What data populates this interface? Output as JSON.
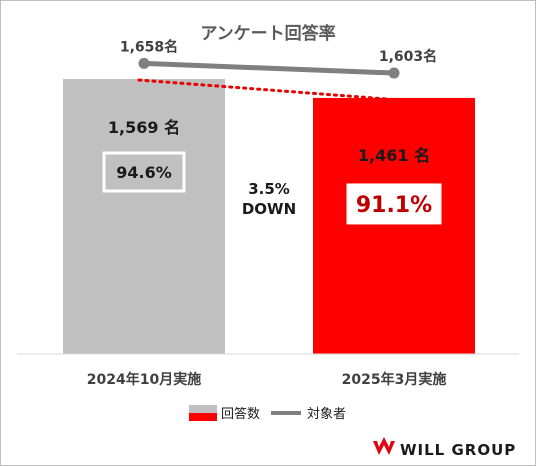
{
  "chart_data": {
    "type": "bar",
    "title": "アンケート回答率",
    "categories": [
      "2024年10月実施",
      "2025年3月実施"
    ],
    "series": [
      {
        "name": "回答数",
        "type": "bar",
        "values": [
          1569,
          1461
        ],
        "value_labels": [
          "1,569 名",
          "1,461 名"
        ],
        "colors": [
          "#c0c0c0",
          "#ff0000"
        ]
      },
      {
        "name": "対象者",
        "type": "line",
        "values": [
          1658,
          1603
        ],
        "value_labels": [
          "1,658名",
          "1,603名"
        ],
        "color": "#7f7f7f"
      }
    ],
    "response_rates": [
      "94.6%",
      "91.1%"
    ],
    "annotation": {
      "line1": "3.5%",
      "line2": "DOWN"
    },
    "ylim": [
      0,
      1900
    ],
    "grid": false,
    "legend_position": "bottom"
  },
  "logo": {
    "text": "WILL GROUP",
    "color": "#e60012"
  }
}
